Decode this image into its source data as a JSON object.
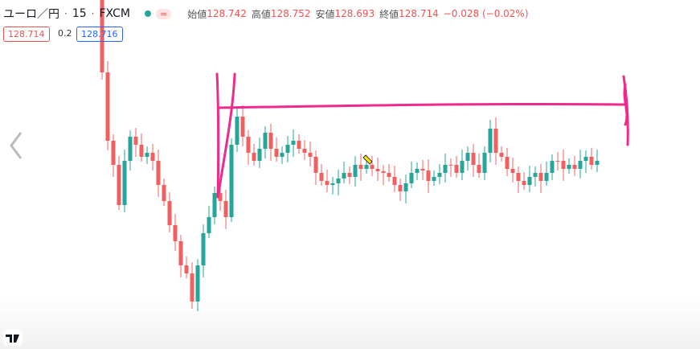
{
  "header": {
    "symbol": "ユーロ／円",
    "interval": "15",
    "source": "FXCM",
    "badge": "≈",
    "open_label": "始値",
    "open": "128.742",
    "high_label": "高値",
    "high": "128.752",
    "low_label": "安値",
    "low": "128.693",
    "close_label": "終値",
    "close": "128.714",
    "change": "−0.028 (−0.02%)"
  },
  "price_boxes": {
    "sell": "128.714",
    "spread": "0.2",
    "buy": "128.716"
  }
}
